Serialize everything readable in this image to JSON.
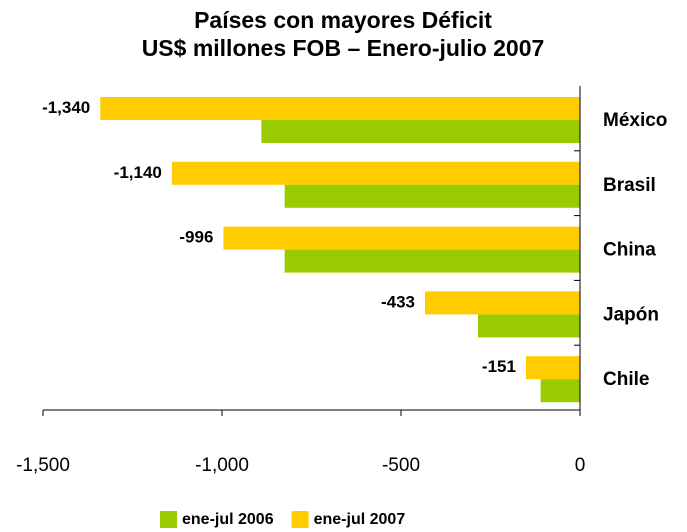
{
  "chart_data": {
    "type": "hbar",
    "title": "Países con mayores Déficit",
    "subtitle": "US$ millones FOB – Enero-julio 2007",
    "categories": [
      "México",
      "Brasil",
      "China",
      "Japón",
      "Chile"
    ],
    "series": [
      {
        "name": "ene-jul 2007",
        "color": "#ffcc00",
        "values": [
          -1340,
          -1140,
          -996,
          -433,
          -151
        ],
        "value_labels": [
          "-1,340",
          "-1,140",
          "-996",
          "-433",
          "-151"
        ]
      },
      {
        "name": "ene-jul 2006",
        "color": "#99cc00",
        "values": [
          -890,
          -825,
          -825,
          -285,
          -110
        ]
      }
    ],
    "xlim": [
      -1500,
      0
    ],
    "xticks": [
      {
        "value": -1500,
        "label": "-1,500"
      },
      {
        "value": -1000,
        "label": "-1,000"
      },
      {
        "value": -500,
        "label": "-500"
      },
      0
    ],
    "legend_order": [
      1,
      0
    ]
  }
}
